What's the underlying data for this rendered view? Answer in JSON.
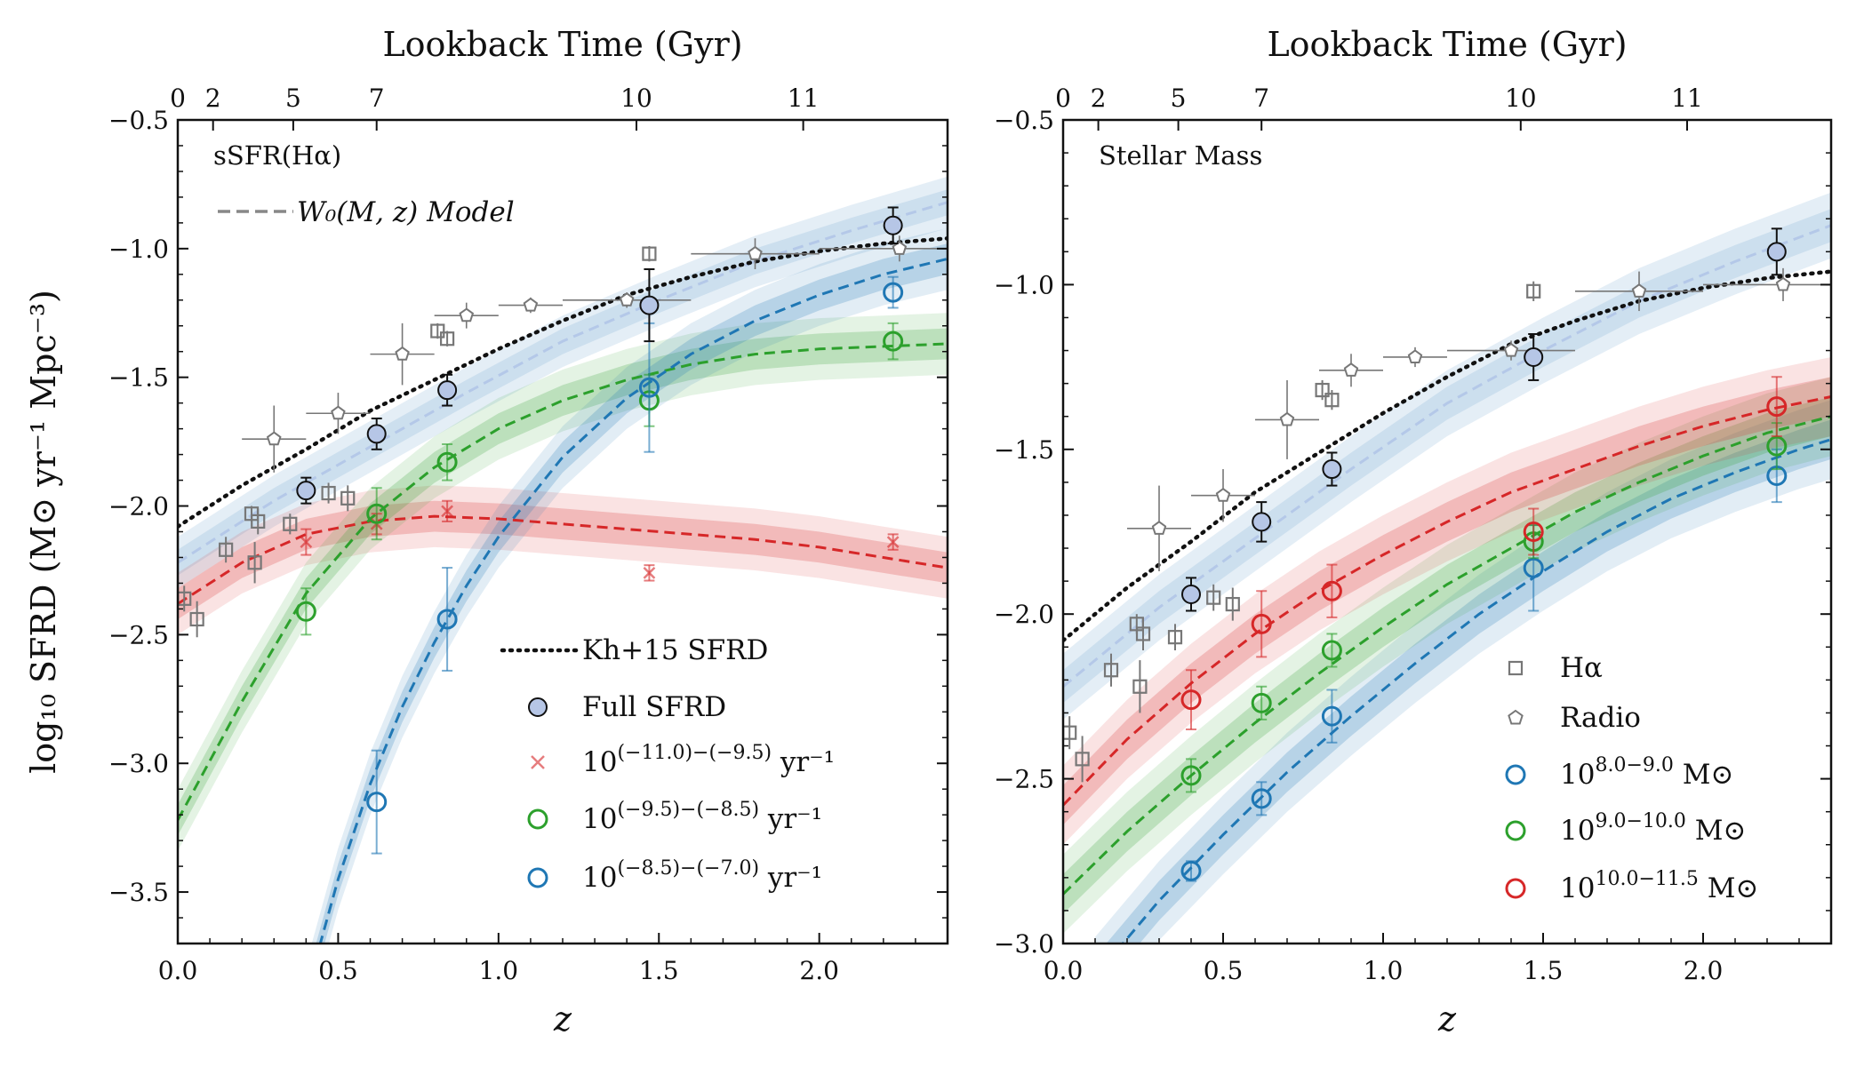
{
  "colors": {
    "blue": "#1f77b4",
    "green": "#2ca02c",
    "red": "#d62728",
    "gray": "#777777",
    "black": "#111111",
    "full_fill": "#b6c6e6"
  },
  "chart_data": [
    {
      "type": "scatter",
      "panel_label": "sSFR(Hα)",
      "model_label": "W₀(M, z) Model",
      "xlabel": "z",
      "ylabel": "log₁₀ SFRD (M⊙ yr⁻¹ Mpc⁻³)",
      "top_axis_label": "Lookback Time (Gyr)",
      "xlim": [
        0,
        2.4
      ],
      "ylim": [
        -3.7,
        -0.5
      ],
      "xticks": [
        0.0,
        0.5,
        1.0,
        1.5,
        2.0
      ],
      "xtick_labels": [
        "0.0",
        "0.5",
        "1.0",
        "1.5",
        "2.0"
      ],
      "yticks": [
        -3.5,
        -3.0,
        -2.5,
        -2.0,
        -1.5,
        -1.0,
        -0.5
      ],
      "ytick_labels": [
        "−3.5",
        "−3.0",
        "−2.5",
        "−2.0",
        "−1.5",
        "−1.0",
        "−0.5"
      ],
      "top_ticks": [
        {
          "label": "0",
          "z": 0.0
        },
        {
          "label": "2",
          "z": 0.11
        },
        {
          "label": "5",
          "z": 0.36
        },
        {
          "label": "7",
          "z": 0.62
        },
        {
          "label": "10",
          "z": 1.43
        },
        {
          "label": "11",
          "z": 1.95
        }
      ],
      "legend": [
        "Kh+15 SFRD",
        "Full SFRD",
        "10^(−11.0)−(−9.5) yr⁻¹",
        "10^(−9.5)−(−8.5) yr⁻¹",
        "10^(−8.5)−(−7.0) yr⁻¹"
      ],
      "legend_parts": [
        {
          "base": "10",
          "sup": "(−11.0)−(−9.5)",
          "tail": " yr⁻¹"
        },
        {
          "base": "10",
          "sup": "(−9.5)−(−8.5)",
          "tail": " yr⁻¹"
        },
        {
          "base": "10",
          "sup": "(−8.5)−(−7.0)",
          "tail": " yr⁻¹"
        }
      ],
      "kh15": {
        "z": [
          0,
          0.2,
          0.4,
          0.6,
          0.8,
          1.0,
          1.2,
          1.4,
          1.6,
          1.8,
          2.0,
          2.2,
          2.4
        ],
        "y": [
          -2.08,
          -1.92,
          -1.78,
          -1.63,
          -1.51,
          -1.39,
          -1.28,
          -1.18,
          -1.11,
          -1.05,
          -1.01,
          -0.98,
          -0.96
        ]
      },
      "full_sfrd": {
        "z": [
          0.4,
          0.62,
          0.84,
          1.47,
          2.23
        ],
        "y": [
          -1.94,
          -1.72,
          -1.55,
          -1.22,
          -0.91
        ],
        "err": [
          0.05,
          0.06,
          0.06,
          0.14,
          0.07
        ]
      },
      "full_model": {
        "z": [
          0,
          0.3,
          0.6,
          0.9,
          1.2,
          1.5,
          1.8,
          2.1,
          2.4
        ],
        "y": [
          -2.22,
          -1.98,
          -1.77,
          -1.56,
          -1.36,
          -1.2,
          -1.05,
          -0.93,
          -0.82
        ]
      },
      "series": [
        {
          "name": "10^(−11.0)−(−9.5) yr⁻¹",
          "color": "red",
          "marker": "x",
          "points": {
            "z": [
              0.4,
              0.62,
              0.84,
              1.47,
              2.23
            ],
            "y": [
              -2.14,
              -2.07,
              -2.02,
              -2.26,
              -2.14
            ],
            "err": [
              0.05,
              0.04,
              0.04,
              0.03,
              0.03
            ]
          },
          "model": {
            "z": [
              0,
              0.2,
              0.4,
              0.6,
              0.8,
              1.0,
              1.2,
              1.4,
              1.6,
              1.8,
              2.0,
              2.2,
              2.4
            ],
            "y": [
              -2.38,
              -2.22,
              -2.11,
              -2.06,
              -2.04,
              -2.05,
              -2.07,
              -2.09,
              -2.11,
              -2.13,
              -2.16,
              -2.2,
              -2.24
            ]
          }
        },
        {
          "name": "10^(−9.5)−(−8.5) yr⁻¹",
          "color": "green",
          "marker": "o",
          "points": {
            "z": [
              0.4,
              0.62,
              0.84,
              1.47,
              2.23
            ],
            "y": [
              -2.41,
              -2.03,
              -1.83,
              -1.59,
              -1.36
            ],
            "err": [
              0.09,
              0.1,
              0.07,
              0.1,
              0.07
            ]
          },
          "model": {
            "z": [
              0,
              0.2,
              0.4,
              0.6,
              0.8,
              1.0,
              1.2,
              1.4,
              1.6,
              1.8,
              2.0,
              2.2,
              2.4
            ],
            "y": [
              -3.22,
              -2.76,
              -2.34,
              -2.05,
              -1.85,
              -1.7,
              -1.59,
              -1.51,
              -1.45,
              -1.41,
              -1.39,
              -1.38,
              -1.37
            ]
          }
        },
        {
          "name": "10^(−8.5)−(−7.0) yr⁻¹",
          "color": "blue",
          "marker": "o",
          "points": {
            "z": [
              0.62,
              0.84,
              1.47,
              2.23
            ],
            "y": [
              -3.15,
              -2.44,
              -1.54,
              -1.17
            ],
            "err": [
              0.2,
              0.2,
              0.25,
              0.06
            ]
          },
          "model": {
            "z": [
              0.4,
              0.5,
              0.6,
              0.7,
              0.8,
              0.9,
              1.0,
              1.2,
              1.4,
              1.6,
              1.8,
              2.0,
              2.2,
              2.4
            ],
            "y": [
              -3.9,
              -3.45,
              -3.08,
              -2.78,
              -2.53,
              -2.31,
              -2.12,
              -1.81,
              -1.58,
              -1.41,
              -1.28,
              -1.18,
              -1.1,
              -1.04
            ]
          }
        }
      ],
      "halpha": {
        "z": [
          0.02,
          0.06,
          0.15,
          0.23,
          0.24,
          0.25,
          0.35,
          0.47,
          0.53,
          0.81,
          0.84,
          1.47
        ],
        "y": [
          -2.36,
          -2.44,
          -2.17,
          -2.03,
          -2.22,
          -2.06,
          -2.07,
          -1.95,
          -1.97,
          -1.32,
          -1.35,
          -1.02
        ],
        "err": [
          0.05,
          0.07,
          0.05,
          0.03,
          0.08,
          0.05,
          0.04,
          0.04,
          0.05,
          0.03,
          0.03,
          0.03
        ]
      },
      "radio": {
        "z": [
          0.3,
          0.5,
          0.7,
          0.9,
          1.1,
          1.4,
          1.8,
          2.25
        ],
        "y": [
          -1.74,
          -1.64,
          -1.41,
          -1.26,
          -1.22,
          -1.2,
          -1.02,
          -1.0
        ],
        "xerr": [
          0.1,
          0.1,
          0.1,
          0.1,
          0.1,
          0.2,
          0.2,
          0.25
        ],
        "yerr": [
          0.13,
          0.08,
          0.12,
          0.05,
          0.03,
          0.03,
          0.06,
          0.05
        ]
      }
    },
    {
      "type": "scatter",
      "panel_label": "Stellar Mass",
      "xlabel": "z",
      "top_axis_label": "Lookback Time (Gyr)",
      "xlim": [
        0,
        2.4
      ],
      "ylim": [
        -3.0,
        -0.5
      ],
      "xticks": [
        0.0,
        0.5,
        1.0,
        1.5,
        2.0
      ],
      "xtick_labels": [
        "0.0",
        "0.5",
        "1.0",
        "1.5",
        "2.0"
      ],
      "yticks": [
        -3.0,
        -2.5,
        -2.0,
        -1.5,
        -1.0,
        -0.5
      ],
      "ytick_labels": [
        "−3.0",
        "−2.5",
        "−2.0",
        "−1.5",
        "−1.0",
        "−0.5"
      ],
      "top_ticks": [
        {
          "label": "0",
          "z": 0.0
        },
        {
          "label": "2",
          "z": 0.11
        },
        {
          "label": "5",
          "z": 0.36
        },
        {
          "label": "7",
          "z": 0.62
        },
        {
          "label": "10",
          "z": 1.43
        },
        {
          "label": "11",
          "z": 1.95
        }
      ],
      "legend": [
        "Hα",
        "Radio",
        "10^8.0−9.0 M⊙",
        "10^9.0−10.0 M⊙",
        "10^10.0−11.5 M⊙"
      ],
      "legend_parts": [
        {
          "base": "10",
          "sup": "8.0−9.0",
          "tail": " M⊙"
        },
        {
          "base": "10",
          "sup": "9.0−10.0",
          "tail": " M⊙"
        },
        {
          "base": "10",
          "sup": "10.0−11.5",
          "tail": " M⊙"
        }
      ],
      "kh15": {
        "z": [
          0,
          0.2,
          0.4,
          0.6,
          0.8,
          1.0,
          1.2,
          1.4,
          1.6,
          1.8,
          2.0,
          2.2,
          2.4
        ],
        "y": [
          -2.08,
          -1.92,
          -1.78,
          -1.63,
          -1.51,
          -1.39,
          -1.28,
          -1.18,
          -1.11,
          -1.05,
          -1.01,
          -0.98,
          -0.96
        ]
      },
      "full_sfrd": {
        "z": [
          0.4,
          0.62,
          0.84,
          1.47,
          2.23
        ],
        "y": [
          -1.94,
          -1.72,
          -1.56,
          -1.22,
          -0.9
        ],
        "err": [
          0.05,
          0.06,
          0.05,
          0.07,
          0.07
        ]
      },
      "full_model": {
        "z": [
          0,
          0.3,
          0.6,
          0.9,
          1.2,
          1.5,
          1.8,
          2.1,
          2.4
        ],
        "y": [
          -2.22,
          -1.98,
          -1.77,
          -1.56,
          -1.36,
          -1.2,
          -1.05,
          -0.93,
          -0.82
        ]
      },
      "series": [
        {
          "name": "10^8.0−9.0 M⊙",
          "color": "blue",
          "marker": "o",
          "points": {
            "z": [
              0.4,
              0.62,
              0.84,
              1.47,
              2.23
            ],
            "y": [
              -2.78,
              -2.56,
              -2.31,
              -1.86,
              -1.58
            ],
            "err": [
              0.03,
              0.05,
              0.08,
              0.13,
              0.08
            ]
          },
          "model": {
            "z": [
              0.1,
              0.3,
              0.5,
              0.7,
              0.9,
              1.1,
              1.3,
              1.5,
              1.7,
              1.9,
              2.1,
              2.3,
              2.4
            ],
            "y": [
              -3.1,
              -2.87,
              -2.67,
              -2.48,
              -2.31,
              -2.15,
              -2.0,
              -1.87,
              -1.75,
              -1.65,
              -1.57,
              -1.5,
              -1.47
            ]
          }
        },
        {
          "name": "10^9.0−10.0 M⊙",
          "color": "green",
          "marker": "o",
          "points": {
            "z": [
              0.4,
              0.62,
              0.84,
              1.47,
              2.23
            ],
            "y": [
              -2.49,
              -2.27,
              -2.11,
              -1.78,
              -1.49
            ],
            "err": [
              0.05,
              0.05,
              0.05,
              0.05,
              0.07
            ]
          },
          "model": {
            "z": [
              0,
              0.2,
              0.4,
              0.6,
              0.8,
              1.0,
              1.2,
              1.4,
              1.6,
              1.8,
              2.0,
              2.2,
              2.4
            ],
            "y": [
              -2.85,
              -2.66,
              -2.49,
              -2.33,
              -2.18,
              -2.04,
              -1.91,
              -1.8,
              -1.69,
              -1.6,
              -1.52,
              -1.45,
              -1.4
            ]
          }
        },
        {
          "name": "10^10.0−11.5 M⊙",
          "color": "red",
          "marker": "o",
          "points": {
            "z": [
              0.4,
              0.62,
              0.84,
              1.47,
              2.23
            ],
            "y": [
              -2.26,
              -2.03,
              -1.93,
              -1.75,
              -1.37
            ],
            "err": [
              0.09,
              0.1,
              0.08,
              0.07,
              0.09
            ]
          },
          "model": {
            "z": [
              0,
              0.2,
              0.4,
              0.6,
              0.8,
              1.0,
              1.2,
              1.4,
              1.6,
              1.8,
              2.0,
              2.2,
              2.4
            ],
            "y": [
              -2.58,
              -2.38,
              -2.21,
              -2.06,
              -1.93,
              -1.82,
              -1.72,
              -1.63,
              -1.56,
              -1.49,
              -1.43,
              -1.38,
              -1.34
            ]
          }
        }
      ],
      "halpha": {
        "z": [
          0.02,
          0.06,
          0.15,
          0.23,
          0.24,
          0.25,
          0.35,
          0.47,
          0.53,
          0.81,
          0.84,
          1.47
        ],
        "y": [
          -2.36,
          -2.44,
          -2.17,
          -2.03,
          -2.22,
          -2.06,
          -2.07,
          -1.95,
          -1.97,
          -1.32,
          -1.35,
          -1.02
        ],
        "err": [
          0.05,
          0.07,
          0.05,
          0.03,
          0.08,
          0.05,
          0.04,
          0.04,
          0.05,
          0.03,
          0.03,
          0.03
        ]
      },
      "radio": {
        "z": [
          0.3,
          0.5,
          0.7,
          0.9,
          1.1,
          1.4,
          1.8,
          2.25
        ],
        "y": [
          -1.74,
          -1.64,
          -1.41,
          -1.26,
          -1.22,
          -1.2,
          -1.02,
          -1.0
        ],
        "xerr": [
          0.1,
          0.1,
          0.1,
          0.1,
          0.1,
          0.2,
          0.2,
          0.25
        ],
        "yerr": [
          0.13,
          0.08,
          0.12,
          0.05,
          0.03,
          0.03,
          0.06,
          0.05
        ]
      }
    }
  ]
}
